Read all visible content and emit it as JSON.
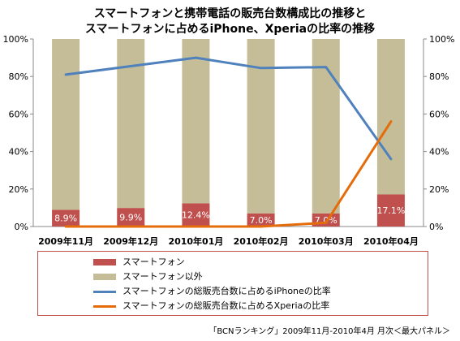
{
  "chart_data": {
    "type": "bar",
    "title_line1": "スマートフォンと携帯電話の販売台数構成比の推移と",
    "title_line2": "スマートフォンに占めるiPhone、Xperiaの比率の推移",
    "categories": [
      "2009年11月",
      "2009年12月",
      "2010年01月",
      "2010年02月",
      "2010年03月",
      "2010年04月"
    ],
    "left_axis": {
      "ticks": [
        "0%",
        "20%",
        "40%",
        "60%",
        "80%",
        "100%"
      ],
      "ylim": [
        0,
        100
      ]
    },
    "right_axis": {
      "ticks": [
        "0%",
        "20%",
        "40%",
        "60%",
        "80%",
        "100%"
      ],
      "ylim": [
        0,
        100
      ]
    },
    "bar_series": [
      {
        "name": "スマートフォン",
        "color": "#c0504d",
        "values": [
          8.9,
          9.9,
          12.4,
          7.0,
          7.0,
          17.1
        ]
      },
      {
        "name": "スマートフォン以外",
        "color": "#c4bd97",
        "values": [
          91.1,
          90.1,
          87.6,
          93.0,
          93.0,
          82.9
        ]
      }
    ],
    "data_labels": [
      "8.9%",
      "9.9%",
      "12.4%",
      "7.0%",
      "7.0%",
      "17.1%"
    ],
    "line_series": [
      {
        "name": "スマートフォンの総販売台数に占めるiPhoneの比率",
        "color": "#4f81bd",
        "values": [
          81,
          85.5,
          90,
          84.5,
          85,
          36
        ]
      },
      {
        "name": "スマートフォンの総販売台数に占めるXperiaの比率",
        "color": "#e46c0a",
        "values": [
          0,
          0,
          0,
          0,
          2,
          56
        ]
      }
    ],
    "legend_position": "bottom",
    "grid": false
  },
  "source_note": "「BCNランキング」2009年11月-2010年4月 月次＜最大パネル＞"
}
